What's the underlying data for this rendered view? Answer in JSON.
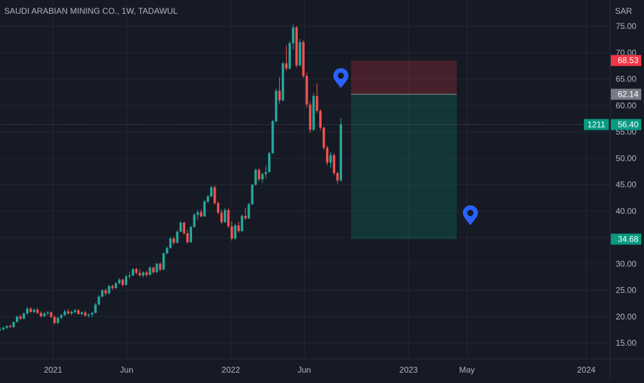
{
  "chart": {
    "symbol_title": "SAUDI ARABIAN MINING CO., 1W, TADAWUL",
    "currency": "SAR",
    "price_ticks": [
      "15.00",
      "20.00",
      "25.00",
      "30.00",
      "35.00",
      "40.00",
      "45.00",
      "50.00",
      "55.00",
      "60.00",
      "65.00",
      "70.00",
      "75.00"
    ],
    "time_ticks": [
      {
        "label": "2021",
        "date": "2021-01-01"
      },
      {
        "label": "Jun",
        "date": "2021-06-01"
      },
      {
        "label": "2022",
        "date": "2022-01-01"
      },
      {
        "label": "Jun",
        "date": "2022-06-01"
      },
      {
        "label": "2023",
        "date": "2023-01-01"
      },
      {
        "label": "May",
        "date": "2023-05-01"
      },
      {
        "label": "2024",
        "date": "2024-01-01"
      }
    ],
    "last_price": {
      "value": 56.4,
      "label": "56.40",
      "countdown": "1211"
    },
    "position": {
      "stop": {
        "value": 68.53,
        "label": "68.53"
      },
      "entry": {
        "value": 62.14,
        "label": "62.14"
      },
      "target": {
        "value": 34.68,
        "label": "34.68"
      },
      "start_date": "2022-09-05",
      "end_date": "2023-04-10"
    },
    "markers": [
      {
        "name": "entry-marker",
        "date": "2022-08-15",
        "price": 65.0
      },
      {
        "name": "target-marker",
        "date": "2023-05-08",
        "price": 39.0
      }
    ],
    "colors": {
      "background": "#161a25",
      "grid": "#242733",
      "up": "#26a69a",
      "down": "#ef5350",
      "axis_text": "#b2b5be",
      "stop_label": "#f23645",
      "entry_label": "#787b86",
      "target_label": "#089981",
      "last_price_label": "#089981",
      "marker": "#2962ff",
      "profit_zone": "rgba(8,153,129,0.22)",
      "loss_zone": "rgba(242,54,69,0.22)"
    }
  },
  "chart_data": {
    "type": "candlestick",
    "title": "SAUDI ARABIAN MINING CO., 1W, TADAWUL",
    "xlabel": "",
    "ylabel": "SAR",
    "xlim": [
      "2020-09-14",
      "2024-02-19"
    ],
    "ylim": [
      12,
      80
    ],
    "grid": true,
    "legend": "none",
    "start_date": "2020-09-14",
    "interval": "1W",
    "candles": [
      [
        17.5,
        18.0,
        17.2,
        17.6
      ],
      [
        17.6,
        18.1,
        17.4,
        17.9
      ],
      [
        17.9,
        18.4,
        17.6,
        18.2
      ],
      [
        18.2,
        18.6,
        17.9,
        18.0
      ],
      [
        18.0,
        19.1,
        17.9,
        19.0
      ],
      [
        19.0,
        20.2,
        18.9,
        20.0
      ],
      [
        20.0,
        20.4,
        19.4,
        19.6
      ],
      [
        19.6,
        20.8,
        19.5,
        20.6
      ],
      [
        20.6,
        21.9,
        20.3,
        21.5
      ],
      [
        21.5,
        21.8,
        20.7,
        20.9
      ],
      [
        20.9,
        21.6,
        20.6,
        21.3
      ],
      [
        21.3,
        21.7,
        20.5,
        20.7
      ],
      [
        20.7,
        21.0,
        19.8,
        20.1
      ],
      [
        20.1,
        20.9,
        19.9,
        20.6
      ],
      [
        20.6,
        21.1,
        20.2,
        20.8
      ],
      [
        20.8,
        21.0,
        19.7,
        19.9
      ],
      [
        19.9,
        20.3,
        18.5,
        18.8
      ],
      [
        18.8,
        20.0,
        18.6,
        19.8
      ],
      [
        19.8,
        20.5,
        19.5,
        20.3
      ],
      [
        20.3,
        21.3,
        20.1,
        21.0
      ],
      [
        21.0,
        21.4,
        20.4,
        20.6
      ],
      [
        20.6,
        21.2,
        20.3,
        20.9
      ],
      [
        20.9,
        21.5,
        20.6,
        21.2
      ],
      [
        21.2,
        21.4,
        20.4,
        20.5
      ],
      [
        20.5,
        21.0,
        20.2,
        20.8
      ],
      [
        20.8,
        21.1,
        20.0,
        20.2
      ],
      [
        20.2,
        20.6,
        19.8,
        20.4
      ],
      [
        20.4,
        20.9,
        19.9,
        20.7
      ],
      [
        20.7,
        22.6,
        20.6,
        22.3
      ],
      [
        22.3,
        24.1,
        22.1,
        23.8
      ],
      [
        23.8,
        25.2,
        23.6,
        25.0
      ],
      [
        25.0,
        25.3,
        24.0,
        24.4
      ],
      [
        24.4,
        26.0,
        24.2,
        25.8
      ],
      [
        25.8,
        26.1,
        25.1,
        25.4
      ],
      [
        25.4,
        26.6,
        25.3,
        26.3
      ],
      [
        26.3,
        27.3,
        26.1,
        27.0
      ],
      [
        27.0,
        27.2,
        25.7,
        26.0
      ],
      [
        26.0,
        28.0,
        25.9,
        27.6
      ],
      [
        27.6,
        28.4,
        27.2,
        27.8
      ],
      [
        27.8,
        29.2,
        27.7,
        29.0
      ],
      [
        29.0,
        29.3,
        28.0,
        28.3
      ],
      [
        28.3,
        29.0,
        27.6,
        27.8
      ],
      [
        27.8,
        28.6,
        27.4,
        28.4
      ],
      [
        28.4,
        28.7,
        27.6,
        27.9
      ],
      [
        27.9,
        29.6,
        27.8,
        29.3
      ],
      [
        29.3,
        29.5,
        28.1,
        28.4
      ],
      [
        28.4,
        30.2,
        28.3,
        30.0
      ],
      [
        30.0,
        30.3,
        28.6,
        28.9
      ],
      [
        28.9,
        32.2,
        28.8,
        32.0
      ],
      [
        32.0,
        33.3,
        31.8,
        33.0
      ],
      [
        33.0,
        35.1,
        32.9,
        34.8
      ],
      [
        34.8,
        35.2,
        33.6,
        34.0
      ],
      [
        34.0,
        36.4,
        33.9,
        36.1
      ],
      [
        36.1,
        38.1,
        36.0,
        37.8
      ],
      [
        37.8,
        38.0,
        35.5,
        35.8
      ],
      [
        35.8,
        36.5,
        33.8,
        34.1
      ],
      [
        34.1,
        37.2,
        34.0,
        37.0
      ],
      [
        37.0,
        39.6,
        36.9,
        39.3
      ],
      [
        39.3,
        40.2,
        38.4,
        39.8
      ],
      [
        39.8,
        40.3,
        38.8,
        39.0
      ],
      [
        39.0,
        42.1,
        38.9,
        41.8
      ],
      [
        41.8,
        43.1,
        41.5,
        42.8
      ],
      [
        42.8,
        44.8,
        42.6,
        44.5
      ],
      [
        44.5,
        44.9,
        41.2,
        41.5
      ],
      [
        41.5,
        41.8,
        39.4,
        39.7
      ],
      [
        39.7,
        40.3,
        37.6,
        37.9
      ],
      [
        37.9,
        40.6,
        37.8,
        40.2
      ],
      [
        40.2,
        40.5,
        36.8,
        37.1
      ],
      [
        37.1,
        38.0,
        34.4,
        34.8
      ],
      [
        34.8,
        37.6,
        34.6,
        37.3
      ],
      [
        37.3,
        38.0,
        35.9,
        36.2
      ],
      [
        36.2,
        39.4,
        36.1,
        39.1
      ],
      [
        39.1,
        40.6,
        38.3,
        38.6
      ],
      [
        38.6,
        41.6,
        38.5,
        41.3
      ],
      [
        41.3,
        45.2,
        41.2,
        45.0
      ],
      [
        45.0,
        48.1,
        44.8,
        47.8
      ],
      [
        47.8,
        48.1,
        45.6,
        46.0
      ],
      [
        46.0,
        47.3,
        45.3,
        47.0
      ],
      [
        47.0,
        48.6,
        46.2,
        47.4
      ],
      [
        47.4,
        51.2,
        47.3,
        51.0
      ],
      [
        51.0,
        57.3,
        50.8,
        57.0
      ],
      [
        57.0,
        63.2,
        56.8,
        62.8
      ],
      [
        62.8,
        65.4,
        60.4,
        61.0
      ],
      [
        61.0,
        68.3,
        60.8,
        68.0
      ],
      [
        68.0,
        71.3,
        66.6,
        67.0
      ],
      [
        67.0,
        72.2,
        66.8,
        71.8
      ],
      [
        71.8,
        75.4,
        70.6,
        74.8
      ],
      [
        74.8,
        75.1,
        67.2,
        67.6
      ],
      [
        67.6,
        72.6,
        67.4,
        72.0
      ],
      [
        72.0,
        72.4,
        65.2,
        65.6
      ],
      [
        65.6,
        66.2,
        59.6,
        60.2
      ],
      [
        60.2,
        60.8,
        54.8,
        55.4
      ],
      [
        55.4,
        62.3,
        55.2,
        61.8
      ],
      [
        61.8,
        64.2,
        58.6,
        59.0
      ],
      [
        59.0,
        59.3,
        55.3,
        55.8
      ],
      [
        55.8,
        56.0,
        51.6,
        52.0
      ],
      [
        52.0,
        52.4,
        48.7,
        49.2
      ],
      [
        49.2,
        51.2,
        48.2,
        50.6
      ],
      [
        50.6,
        50.9,
        46.8,
        47.2
      ],
      [
        47.2,
        47.5,
        45.2,
        45.8
      ],
      [
        45.8,
        57.6,
        45.6,
        56.4
      ]
    ],
    "position": {
      "type": "short",
      "entry": 62.14,
      "stop": 68.53,
      "target": 34.68
    },
    "last_price": 56.4
  }
}
